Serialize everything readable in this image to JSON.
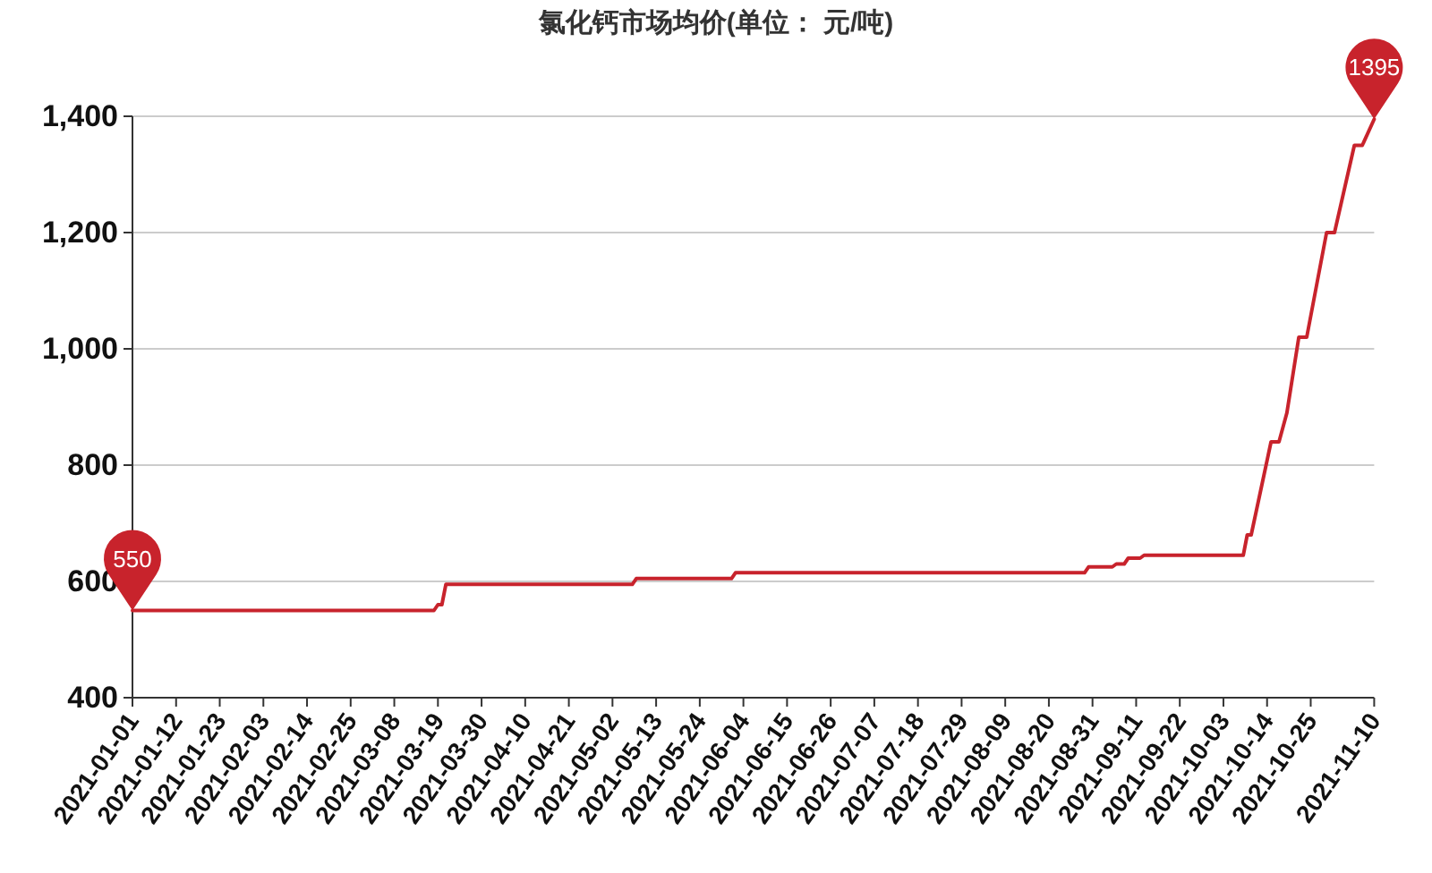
{
  "chart_data": {
    "type": "line",
    "title": "氯化钙市场均价(单位： 元/吨)",
    "x": [
      "2021-01-01",
      "2021-03-18",
      "2021-03-19",
      "2021-03-20",
      "2021-03-21",
      "2021-05-07",
      "2021-05-08",
      "2021-06-01",
      "2021-06-02",
      "2021-08-29",
      "2021-08-30",
      "2021-09-05",
      "2021-09-06",
      "2021-09-08",
      "2021-09-09",
      "2021-09-12",
      "2021-09-13",
      "2021-10-08",
      "2021-10-09",
      "2021-10-10",
      "2021-10-15",
      "2021-10-17",
      "2021-10-19",
      "2021-10-22",
      "2021-10-24",
      "2021-10-29",
      "2021-10-31",
      "2021-11-05",
      "2021-11-07",
      "2021-11-10"
    ],
    "series": [
      {
        "color": "#c8232c",
        "values": [
          550,
          550,
          560,
          560,
          595,
          595,
          605,
          605,
          615,
          615,
          625,
          625,
          630,
          630,
          640,
          640,
          645,
          645,
          680,
          680,
          840,
          840,
          890,
          1020,
          1020,
          1200,
          1200,
          1350,
          1350,
          1395
        ]
      }
    ],
    "xlim": [
      "2021-01-01",
      "2021-11-10"
    ],
    "xticks": [
      "2021-01-01",
      "2021-01-12",
      "2021-01-23",
      "2021-02-03",
      "2021-02-14",
      "2021-02-25",
      "2021-03-08",
      "2021-03-19",
      "2021-03-30",
      "2021-04-10",
      "2021-04-21",
      "2021-05-02",
      "2021-05-13",
      "2021-05-24",
      "2021-06-04",
      "2021-06-15",
      "2021-06-26",
      "2021-07-07",
      "2021-07-18",
      "2021-07-29",
      "2021-08-09",
      "2021-08-20",
      "2021-08-31",
      "2021-09-11",
      "2021-09-22",
      "2021-10-03",
      "2021-10-14",
      "2021-10-25",
      "2021-11-10"
    ],
    "ylim": [
      400,
      1400
    ],
    "yticks": [
      400,
      600,
      800,
      {
        "value": 1000,
        "label": "1,000"
      },
      {
        "value": 1200,
        "label": "1,200"
      },
      {
        "value": 1400,
        "label": "1,400"
      }
    ],
    "grid": "y",
    "annotations": [
      {
        "text": "550",
        "x": "2021-01-01",
        "y": 550
      },
      {
        "text": "1395",
        "x": "2021-11-10",
        "y": 1395
      }
    ]
  }
}
